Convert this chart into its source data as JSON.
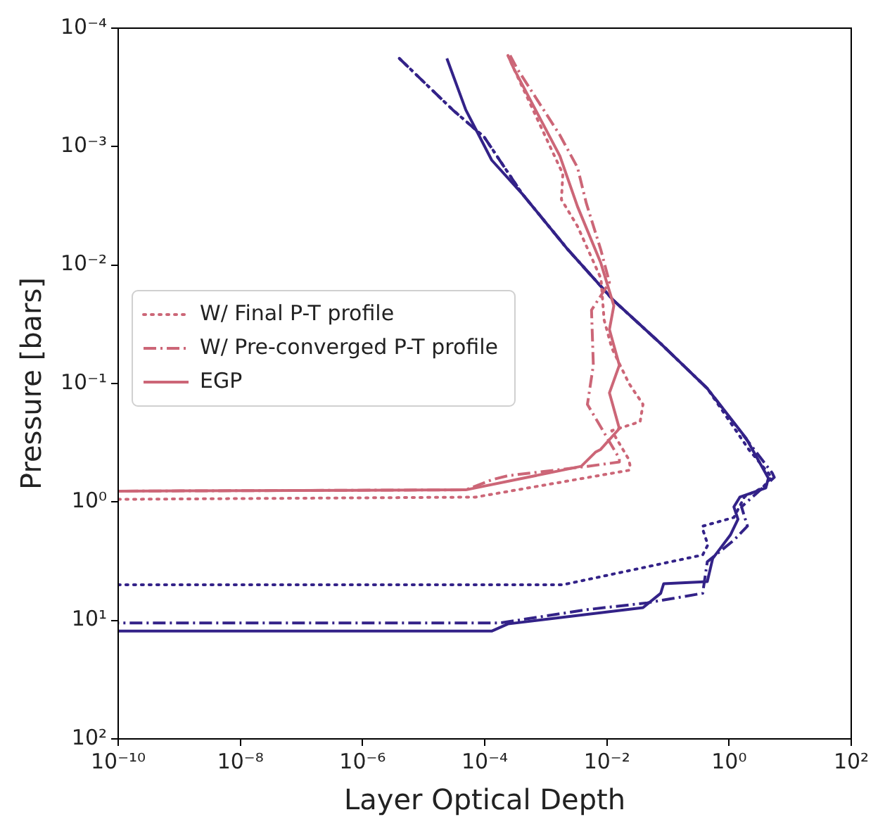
{
  "chart_data": {
    "type": "line",
    "xlabel": "Layer Optical Depth",
    "ylabel": "Pressure [bars]",
    "log": "xy",
    "grid": false,
    "legend": "center left",
    "marker": "none",
    "xlim": [
      1e-10,
      100
    ],
    "ylim": [
      100,
      0.0001
    ],
    "xticks": [
      {
        "value": 1e-10,
        "label": "10⁻¹⁰"
      },
      {
        "value": 1e-08,
        "label": "10⁻⁸"
      },
      {
        "value": 1e-06,
        "label": "10⁻⁶"
      },
      {
        "value": 0.0001,
        "label": "10⁻⁴"
      },
      {
        "value": 0.01,
        "label": "10⁻²"
      },
      {
        "value": 1,
        "label": "10⁰"
      },
      {
        "value": 100,
        "label": "10²"
      }
    ],
    "yticks": [
      {
        "value": 0.0001,
        "label": "10⁻⁴"
      },
      {
        "value": 0.001,
        "label": "10⁻³"
      },
      {
        "value": 0.01,
        "label": "10⁻²"
      },
      {
        "value": 0.1,
        "label": "10⁻¹"
      },
      {
        "value": 1,
        "label": "10⁰"
      },
      {
        "value": 10,
        "label": "10¹"
      },
      {
        "value": 100,
        "label": "10²"
      }
    ],
    "series": [
      {
        "name": "W/ Final P-T profile",
        "color": "#cc6677",
        "line_style": "dotted",
        "x": [
          0.00024,
          0.0003,
          0.0019,
          0.0018,
          0.0033,
          0.008,
          0.009,
          0.012,
          0.023,
          0.039,
          0.035,
          0.012,
          0.023,
          0.024,
          0.023,
          7.1e-05,
          1e-10
        ],
        "values": [
          0.00017,
          0.00022,
          0.0017,
          0.0028,
          0.0047,
          0.013,
          0.029,
          0.05,
          0.1,
          0.15,
          0.21,
          0.25,
          0.44,
          0.5,
          0.54,
          0.91,
          0.95
        ]
      },
      {
        "name": "W/ Pre-converged P-T profile",
        "color": "#cc6677",
        "line_style": "dashdot",
        "x": [
          0.00026,
          0.00034,
          0.0017,
          0.0033,
          0.0046,
          0.008,
          0.011,
          0.0056,
          0.006,
          0.0048,
          0.016,
          0.016,
          0.0048,
          0.00024,
          0.00013,
          4.9e-05,
          1e-10
        ],
        "values": [
          0.00017,
          0.00022,
          0.0008,
          0.0015,
          0.003,
          0.0075,
          0.014,
          0.024,
          0.07,
          0.15,
          0.43,
          0.46,
          0.5,
          0.6,
          0.65,
          0.79,
          0.81
        ]
      },
      {
        "name": "EGP",
        "color": "#cc6677",
        "line_style": "solid",
        "x": [
          0.00024,
          0.0003,
          0.0017,
          0.0033,
          0.0079,
          0.013,
          0.011,
          0.016,
          0.011,
          0.016,
          0.0079,
          0.0065,
          0.0038,
          4.9e-05,
          1e-10
        ],
        "values": [
          0.00017,
          0.00022,
          0.0012,
          0.0032,
          0.0095,
          0.022,
          0.035,
          0.07,
          0.12,
          0.24,
          0.36,
          0.38,
          0.5,
          0.79,
          0.81
        ]
      },
      {
        "color": "#332288",
        "line_style": "dotted",
        "x": [
          4e-06,
          3e-05,
          9.8e-05,
          0.00041,
          0.0023,
          0.013,
          0.076,
          0.44,
          2.1,
          4.4,
          5.0,
          3.5,
          1.8,
          1.2,
          0.37,
          0.37,
          0.45,
          0.37,
          0.0019,
          1e-10
        ],
        "values": [
          0.00018,
          0.00049,
          0.00083,
          0.0025,
          0.0074,
          0.02,
          0.046,
          0.11,
          0.36,
          0.57,
          0.62,
          0.76,
          0.9,
          1.35,
          1.6,
          1.7,
          2.3,
          2.8,
          5.0,
          5.0
        ]
      },
      {
        "color": "#332288",
        "line_style": "dashdot",
        "x": [
          4e-06,
          3e-05,
          9.8e-05,
          0.00041,
          0.0023,
          0.013,
          0.076,
          0.44,
          5.1,
          5.5,
          1.6,
          2.0,
          1.2,
          0.44,
          0.37,
          0.046,
          0.0048,
          0.00018,
          1e-10
        ],
        "values": [
          0.00018,
          0.00049,
          0.00083,
          0.0025,
          0.0074,
          0.02,
          0.046,
          0.11,
          0.57,
          0.62,
          1.1,
          1.6,
          2.1,
          3.2,
          5.9,
          7.1,
          8.1,
          10.5,
          10.5
        ]
      },
      {
        "color": "#332288",
        "line_style": "solid",
        "x": [
          2.4e-05,
          4.9e-05,
          0.00013,
          0.00041,
          0.0023,
          0.013,
          0.076,
          0.44,
          1.9,
          4.4,
          4.0,
          1.5,
          1.2,
          1.4,
          1.05,
          0.54,
          0.44,
          0.085,
          0.076,
          0.039,
          0.00024,
          0.00013,
          1e-10
        ],
        "values": [
          0.00018,
          0.00049,
          0.0013,
          0.0025,
          0.0074,
          0.02,
          0.046,
          0.11,
          0.29,
          0.63,
          0.76,
          0.91,
          1.1,
          1.4,
          1.9,
          3.0,
          4.7,
          4.9,
          5.9,
          7.8,
          10.7,
          12.3,
          12.3
        ]
      }
    ]
  }
}
